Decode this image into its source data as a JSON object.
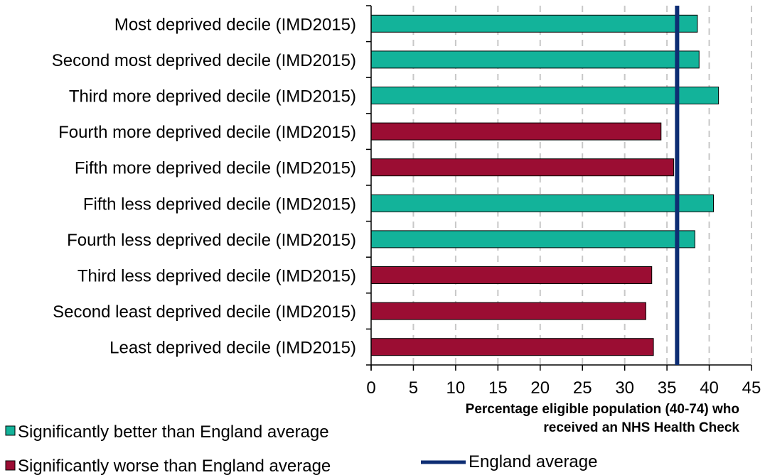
{
  "chart_data": {
    "type": "bar",
    "orientation": "horizontal",
    "xlabel_lines": [
      "Percentage eligible  population (40-74) who",
      "received an NHS Health Check"
    ],
    "xlim": [
      0,
      45
    ],
    "xticks": [
      "0",
      "5",
      "10",
      "15",
      "20",
      "25",
      "30",
      "35",
      "40",
      "45"
    ],
    "grid": "vertical dashed",
    "categories": [
      "Most deprived decile (IMD2015)",
      "Second most deprived decile (IMD2015)",
      "Third more deprived decile (IMD2015)",
      "Fourth more deprived decile (IMD2015)",
      "Fifth more deprived decile (IMD2015)",
      "Fifth less deprived decile (IMD2015)",
      "Fourth less deprived decile (IMD2015)",
      "Third less deprived decile (IMD2015)",
      "Second least deprived decile (IMD2015)",
      "Least deprived decile (IMD2015)"
    ],
    "values": [
      38.6,
      38.8,
      41.1,
      34.3,
      35.8,
      40.5,
      38.3,
      33.2,
      32.5,
      33.4
    ],
    "significance": [
      "better",
      "better",
      "better",
      "worse",
      "worse",
      "better",
      "better",
      "worse",
      "worse",
      "worse"
    ],
    "reference_line": {
      "value": 36.2,
      "label": "England average",
      "color": "#0d2d73"
    },
    "legend": {
      "placement": "bottom",
      "better": "Significantly better than England average",
      "worse": "Significantly worse than England average",
      "line": "England average"
    },
    "colors": {
      "better": "#13b39a",
      "worse": "#9b0d33",
      "grid": "#c8c8c8",
      "axis": "#000000"
    }
  }
}
